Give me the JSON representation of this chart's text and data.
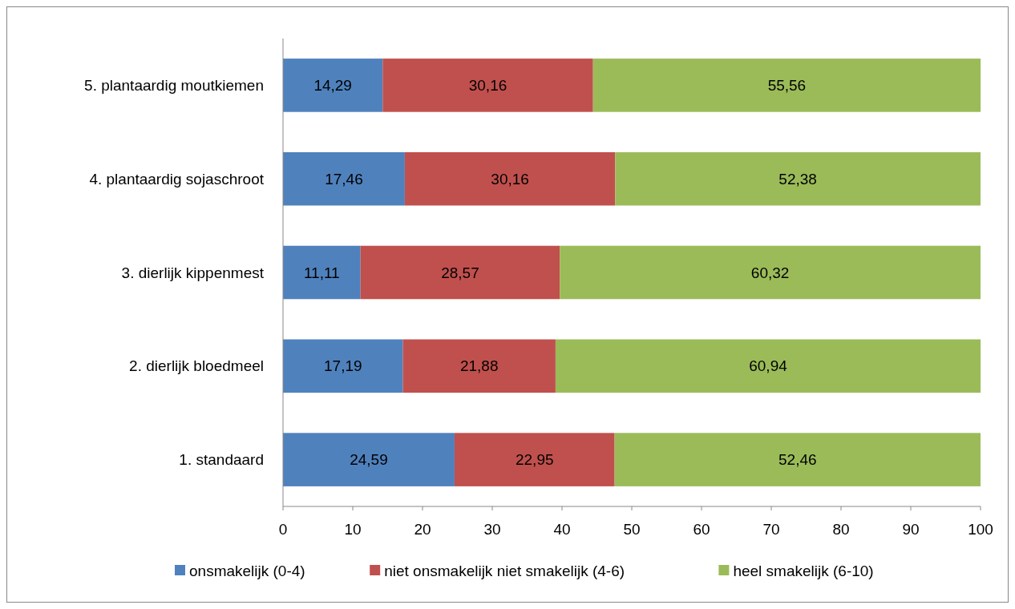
{
  "chart_data": {
    "type": "bar",
    "orientation": "horizontal",
    "stacked": true,
    "categories": [
      "5. plantaardig moutkiemen",
      "4. plantaardig sojaschroot",
      "3. dierlijk kippenmest",
      "2. dierlijk bloedmeel",
      "1. standaard"
    ],
    "series": [
      {
        "name": "onsmakelijk (0-4)",
        "color": "#4f81bd",
        "values": [
          14.29,
          17.46,
          11.11,
          17.19,
          24.59
        ],
        "value_labels": [
          "14,29",
          "17,46",
          "11,11",
          "17,19",
          "24,59"
        ]
      },
      {
        "name": "niet onsmakelijk niet smakelijk (4-6)",
        "color": "#c0504d",
        "values": [
          30.16,
          30.16,
          28.57,
          21.88,
          22.95
        ],
        "value_labels": [
          "30,16",
          "30,16",
          "28,57",
          "21,88",
          "22,95"
        ]
      },
      {
        "name": "heel smakelijk (6-10)",
        "color": "#9bbb59",
        "values": [
          55.56,
          52.38,
          60.32,
          60.94,
          52.46
        ],
        "value_labels": [
          "55,56",
          "52,38",
          "60,32",
          "60,94",
          "52,46"
        ]
      }
    ],
    "xlim": [
      0,
      100
    ],
    "xticks": [
      0,
      10,
      20,
      30,
      40,
      50,
      60,
      70,
      80,
      90,
      100
    ],
    "grid": false,
    "legend": "bottom"
  }
}
